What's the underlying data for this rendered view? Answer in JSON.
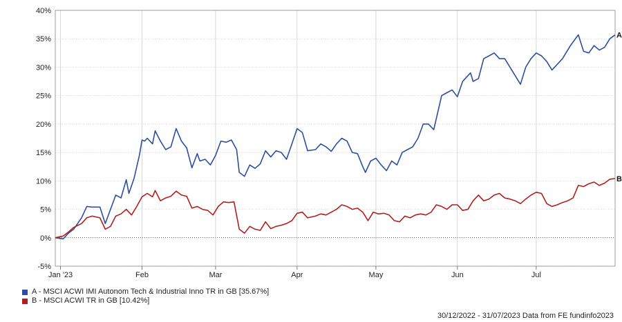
{
  "chart_data": {
    "type": "line",
    "ylim": [
      -5,
      40
    ],
    "y_ticks": [
      -5,
      0,
      5,
      10,
      15,
      20,
      25,
      30,
      35,
      40
    ],
    "y_tick_labels": [
      "-5%",
      "0%",
      "5%",
      "10%",
      "15%",
      "20%",
      "25%",
      "30%",
      "35%",
      "40%"
    ],
    "x_range": [
      "2022-12-30",
      "2023-07-31"
    ],
    "x_ticks": [
      {
        "date": "2023-01-01",
        "label": "Jan '23"
      },
      {
        "date": "2023-02-01",
        "label": "Feb"
      },
      {
        "date": "2023-03-01",
        "label": "Mar"
      },
      {
        "date": "2023-04-01",
        "label": "Apr"
      },
      {
        "date": "2023-05-01",
        "label": "May"
      },
      {
        "date": "2023-06-01",
        "label": "Jun"
      },
      {
        "date": "2023-07-01",
        "label": "Jul"
      }
    ],
    "grid": true,
    "series": [
      {
        "name": "A - MSCI ACWI IMI Autonom Tech & Industrial Inno TR in GB [35.67%]",
        "end_label": "A",
        "color": "#2b4f9e",
        "points": [
          [
            "2022-12-30",
            0
          ],
          [
            "2023-01-02",
            -0.2
          ],
          [
            "2023-01-04",
            0.8
          ],
          [
            "2023-01-06",
            1.5
          ],
          [
            "2023-01-09",
            3.5
          ],
          [
            "2023-01-11",
            5.5
          ],
          [
            "2023-01-13",
            5.4
          ],
          [
            "2023-01-16",
            5.4
          ],
          [
            "2023-01-18",
            2.5
          ],
          [
            "2023-01-20",
            5.0
          ],
          [
            "2023-01-22",
            7.5
          ],
          [
            "2023-01-24",
            7.0
          ],
          [
            "2023-01-26",
            10.2
          ],
          [
            "2023-01-27",
            7.8
          ],
          [
            "2023-01-29",
            10.5
          ],
          [
            "2023-01-31",
            14.5
          ],
          [
            "2023-02-01",
            17.2
          ],
          [
            "2023-02-02",
            17.0
          ],
          [
            "2023-02-03",
            17.5
          ],
          [
            "2023-02-05",
            16.5
          ],
          [
            "2023-02-06",
            18.8
          ],
          [
            "2023-02-08",
            17.0
          ],
          [
            "2023-02-10",
            15.5
          ],
          [
            "2023-02-12",
            16.0
          ],
          [
            "2023-02-14",
            19.2
          ],
          [
            "2023-02-16",
            17.0
          ],
          [
            "2023-02-18",
            15.8
          ],
          [
            "2023-02-20",
            12.3
          ],
          [
            "2023-02-22",
            14.8
          ],
          [
            "2023-02-23",
            13.5
          ],
          [
            "2023-02-25",
            13.8
          ],
          [
            "2023-02-27",
            12.8
          ],
          [
            "2023-03-01",
            14.5
          ],
          [
            "2023-03-03",
            17.0
          ],
          [
            "2023-03-05",
            16.8
          ],
          [
            "2023-03-07",
            17.2
          ],
          [
            "2023-03-09",
            15.5
          ],
          [
            "2023-03-10",
            11.5
          ],
          [
            "2023-03-12",
            10.8
          ],
          [
            "2023-03-14",
            12.8
          ],
          [
            "2023-03-16",
            12.2
          ],
          [
            "2023-03-18",
            13.0
          ],
          [
            "2023-03-20",
            15.3
          ],
          [
            "2023-03-22",
            14.2
          ],
          [
            "2023-03-24",
            15.3
          ],
          [
            "2023-03-26",
            15.0
          ],
          [
            "2023-03-28",
            13.8
          ],
          [
            "2023-03-30",
            16.5
          ],
          [
            "2023-04-01",
            19.2
          ],
          [
            "2023-04-03",
            18.5
          ],
          [
            "2023-04-05",
            15.3
          ],
          [
            "2023-04-08",
            15.5
          ],
          [
            "2023-04-10",
            16.5
          ],
          [
            "2023-04-12",
            16.0
          ],
          [
            "2023-04-14",
            15.2
          ],
          [
            "2023-04-16",
            16.5
          ],
          [
            "2023-04-18",
            17.5
          ],
          [
            "2023-04-20",
            17.0
          ],
          [
            "2023-04-22",
            15.0
          ],
          [
            "2023-04-24",
            14.8
          ],
          [
            "2023-04-26",
            12.5
          ],
          [
            "2023-04-27",
            11.5
          ],
          [
            "2023-04-29",
            13.5
          ],
          [
            "2023-05-01",
            14.0
          ],
          [
            "2023-05-03",
            12.8
          ],
          [
            "2023-05-05",
            11.8
          ],
          [
            "2023-05-07",
            13.5
          ],
          [
            "2023-05-09",
            12.8
          ],
          [
            "2023-05-11",
            15.0
          ],
          [
            "2023-05-13",
            15.5
          ],
          [
            "2023-05-15",
            16.0
          ],
          [
            "2023-05-17",
            17.5
          ],
          [
            "2023-05-19",
            20.0
          ],
          [
            "2023-05-21",
            20.0
          ],
          [
            "2023-05-23",
            19.0
          ],
          [
            "2023-05-26",
            25.0
          ],
          [
            "2023-05-28",
            25.5
          ],
          [
            "2023-05-30",
            26.0
          ],
          [
            "2023-06-01",
            24.8
          ],
          [
            "2023-06-03",
            27.5
          ],
          [
            "2023-06-06",
            29.0
          ],
          [
            "2023-06-07",
            27.5
          ],
          [
            "2023-06-09",
            28.0
          ],
          [
            "2023-06-11",
            31.5
          ],
          [
            "2023-06-13",
            32.0
          ],
          [
            "2023-06-15",
            32.5
          ],
          [
            "2023-06-17",
            31.5
          ],
          [
            "2023-06-19",
            31.5
          ],
          [
            "2023-06-21",
            30.0
          ],
          [
            "2023-06-23",
            28.5
          ],
          [
            "2023-06-25",
            27.0
          ],
          [
            "2023-06-27",
            30.0
          ],
          [
            "2023-06-29",
            31.5
          ],
          [
            "2023-07-01",
            32.5
          ],
          [
            "2023-07-03",
            32.0
          ],
          [
            "2023-07-05",
            31.0
          ],
          [
            "2023-07-07",
            29.5
          ],
          [
            "2023-07-09",
            30.5
          ],
          [
            "2023-07-11",
            31.5
          ],
          [
            "2023-07-14",
            33.8
          ],
          [
            "2023-07-17",
            35.7
          ],
          [
            "2023-07-19",
            32.8
          ],
          [
            "2023-07-21",
            32.5
          ],
          [
            "2023-07-23",
            33.8
          ],
          [
            "2023-07-25",
            33.0
          ],
          [
            "2023-07-27",
            33.5
          ],
          [
            "2023-07-29",
            35.0
          ],
          [
            "2023-07-31",
            35.67
          ]
        ]
      },
      {
        "name": "B - MSCI ACWI TR in GB [10.42%]",
        "end_label": "B",
        "color": "#b01e1e",
        "points": [
          [
            "2022-12-30",
            0
          ],
          [
            "2023-01-02",
            0.3
          ],
          [
            "2023-01-04",
            1.0
          ],
          [
            "2023-01-06",
            1.8
          ],
          [
            "2023-01-09",
            2.5
          ],
          [
            "2023-01-11",
            3.5
          ],
          [
            "2023-01-13",
            3.8
          ],
          [
            "2023-01-16",
            3.5
          ],
          [
            "2023-01-18",
            1.5
          ],
          [
            "2023-01-20",
            2.0
          ],
          [
            "2023-01-22",
            3.8
          ],
          [
            "2023-01-24",
            4.2
          ],
          [
            "2023-01-26",
            5.0
          ],
          [
            "2023-01-28",
            4.0
          ],
          [
            "2023-01-30",
            5.5
          ],
          [
            "2023-02-01",
            7.2
          ],
          [
            "2023-02-03",
            7.8
          ],
          [
            "2023-02-05",
            7.2
          ],
          [
            "2023-02-06",
            8.3
          ],
          [
            "2023-02-08",
            6.5
          ],
          [
            "2023-02-10",
            7.0
          ],
          [
            "2023-02-12",
            7.3
          ],
          [
            "2023-02-14",
            8.2
          ],
          [
            "2023-02-16",
            7.5
          ],
          [
            "2023-02-18",
            7.3
          ],
          [
            "2023-02-20",
            5.2
          ],
          [
            "2023-02-22",
            5.5
          ],
          [
            "2023-02-24",
            5.0
          ],
          [
            "2023-02-26",
            4.8
          ],
          [
            "2023-02-28",
            4.0
          ],
          [
            "2023-03-02",
            5.5
          ],
          [
            "2023-03-04",
            6.3
          ],
          [
            "2023-03-06",
            6.2
          ],
          [
            "2023-03-08",
            6.3
          ],
          [
            "2023-03-10",
            1.5
          ],
          [
            "2023-03-12",
            0.8
          ],
          [
            "2023-03-14",
            2.0
          ],
          [
            "2023-03-16",
            1.5
          ],
          [
            "2023-03-18",
            1.3
          ],
          [
            "2023-03-20",
            2.8
          ],
          [
            "2023-03-22",
            1.6
          ],
          [
            "2023-03-24",
            2.0
          ],
          [
            "2023-03-26",
            2.2
          ],
          [
            "2023-03-28",
            2.5
          ],
          [
            "2023-03-30",
            3.0
          ],
          [
            "2023-04-01",
            4.3
          ],
          [
            "2023-04-03",
            4.5
          ],
          [
            "2023-04-05",
            3.5
          ],
          [
            "2023-04-08",
            3.8
          ],
          [
            "2023-04-10",
            4.2
          ],
          [
            "2023-04-12",
            4.0
          ],
          [
            "2023-04-14",
            4.5
          ],
          [
            "2023-04-16",
            5.0
          ],
          [
            "2023-04-18",
            5.8
          ],
          [
            "2023-04-20",
            5.5
          ],
          [
            "2023-04-22",
            5.0
          ],
          [
            "2023-04-24",
            5.2
          ],
          [
            "2023-04-26",
            4.5
          ],
          [
            "2023-04-28",
            3.0
          ],
          [
            "2023-04-30",
            4.5
          ],
          [
            "2023-05-02",
            4.2
          ],
          [
            "2023-05-04",
            4.3
          ],
          [
            "2023-05-06",
            4.0
          ],
          [
            "2023-05-08",
            3.0
          ],
          [
            "2023-05-10",
            2.8
          ],
          [
            "2023-05-12",
            3.8
          ],
          [
            "2023-05-14",
            3.5
          ],
          [
            "2023-05-16",
            4.0
          ],
          [
            "2023-05-18",
            4.2
          ],
          [
            "2023-05-20",
            4.0
          ],
          [
            "2023-05-22",
            4.5
          ],
          [
            "2023-05-24",
            5.8
          ],
          [
            "2023-05-26",
            5.5
          ],
          [
            "2023-05-28",
            5.0
          ],
          [
            "2023-05-30",
            5.8
          ],
          [
            "2023-06-01",
            5.8
          ],
          [
            "2023-06-03",
            4.8
          ],
          [
            "2023-06-05",
            5.0
          ],
          [
            "2023-06-07",
            6.5
          ],
          [
            "2023-06-09",
            7.5
          ],
          [
            "2023-06-11",
            6.5
          ],
          [
            "2023-06-13",
            6.8
          ],
          [
            "2023-06-15",
            7.5
          ],
          [
            "2023-06-17",
            7.8
          ],
          [
            "2023-06-19",
            7.0
          ],
          [
            "2023-06-21",
            6.8
          ],
          [
            "2023-06-23",
            6.5
          ],
          [
            "2023-06-25",
            6.0
          ],
          [
            "2023-06-27",
            6.8
          ],
          [
            "2023-06-29",
            7.5
          ],
          [
            "2023-07-01",
            8.0
          ],
          [
            "2023-07-03",
            7.8
          ],
          [
            "2023-07-05",
            6.0
          ],
          [
            "2023-07-07",
            5.5
          ],
          [
            "2023-07-09",
            5.8
          ],
          [
            "2023-07-11",
            6.2
          ],
          [
            "2023-07-13",
            6.5
          ],
          [
            "2023-07-15",
            7.0
          ],
          [
            "2023-07-17",
            9.2
          ],
          [
            "2023-07-19",
            9.0
          ],
          [
            "2023-07-21",
            9.5
          ],
          [
            "2023-07-23",
            9.8
          ],
          [
            "2023-07-25",
            9.2
          ],
          [
            "2023-07-27",
            9.6
          ],
          [
            "2023-07-29",
            10.3
          ],
          [
            "2023-07-31",
            10.42
          ]
        ]
      }
    ],
    "footer": "30/12/2022 - 31/07/2023 Data from FE fundinfo2023"
  }
}
